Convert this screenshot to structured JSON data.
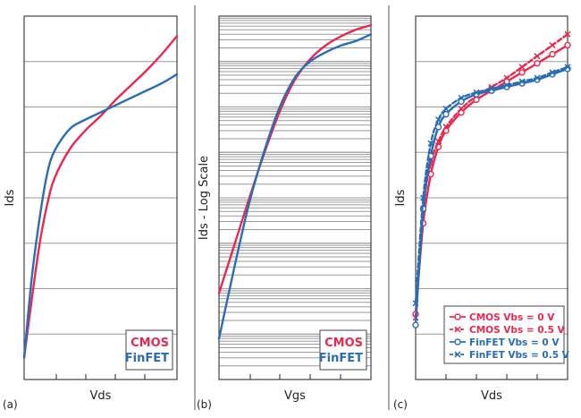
{
  "colors": {
    "cmos": "#e8294f",
    "finfet": "#2a6db5"
  },
  "chart_data": [
    {
      "panel_label": "(a)",
      "type": "line",
      "xlabel": "Vds",
      "ylabel": "Ids",
      "xlim": [
        0,
        10
      ],
      "ylim": [
        0,
        10
      ],
      "grid": true,
      "legend_position": "bottom-right",
      "series": [
        {
          "name": "CMOS",
          "color_key": "cmos",
          "x": [
            0,
            0.5,
            1,
            1.5,
            2,
            3,
            4,
            5,
            6,
            7,
            8,
            9,
            10
          ],
          "y": [
            0.6,
            2.2,
            3.7,
            4.8,
            5.55,
            6.35,
            6.85,
            7.25,
            7.7,
            8.1,
            8.5,
            8.95,
            9.45
          ]
        },
        {
          "name": "FinFET",
          "color_key": "finfet",
          "x": [
            0,
            0.5,
            1,
            1.5,
            2,
            3,
            4,
            5,
            6,
            7,
            8,
            9,
            10
          ],
          "y": [
            0.6,
            2.8,
            4.4,
            5.65,
            6.3,
            6.9,
            7.15,
            7.35,
            7.55,
            7.75,
            7.95,
            8.15,
            8.4
          ]
        }
      ]
    },
    {
      "panel_label": "(b)",
      "type": "line",
      "xlabel": "Vgs",
      "ylabel": "Ids - Log Scale",
      "xlim": [
        0,
        10
      ],
      "ylim": [
        0,
        8
      ],
      "grid": true,
      "log_scale_y": true,
      "legend_position": "bottom-right",
      "series": [
        {
          "name": "CMOS",
          "color_key": "cmos",
          "x": [
            0,
            1,
            2,
            3,
            4,
            5,
            6,
            7,
            8,
            9,
            10
          ],
          "y": [
            1.9,
            2.95,
            4.0,
            5.0,
            5.9,
            6.6,
            7.05,
            7.35,
            7.55,
            7.7,
            7.8
          ]
        },
        {
          "name": "FinFET",
          "color_key": "finfet",
          "x": [
            0,
            1,
            2,
            3,
            4,
            5,
            6,
            7,
            8,
            9,
            10
          ],
          "y": [
            0.9,
            2.45,
            3.9,
            5.05,
            6.0,
            6.65,
            7.0,
            7.2,
            7.35,
            7.45,
            7.6
          ]
        }
      ]
    },
    {
      "panel_label": "(c)",
      "type": "line",
      "xlabel": "Vds",
      "ylabel": "Ids",
      "xlim": [
        0,
        10
      ],
      "ylim": [
        0,
        10
      ],
      "grid": true,
      "legend_position": "bottom-right",
      "series": [
        {
          "name": "CMOS Vbs = 0 V",
          "color_key": "cmos",
          "marker": "circle",
          "dash": false,
          "x": [
            0,
            0.5,
            1,
            1.5,
            2,
            3,
            4,
            5,
            6,
            7,
            8,
            9,
            10
          ],
          "y": [
            1.8,
            4.3,
            5.65,
            6.4,
            6.85,
            7.35,
            7.7,
            7.95,
            8.2,
            8.45,
            8.7,
            8.95,
            9.2
          ]
        },
        {
          "name": "CMOS Vbs = 0.5 V",
          "color_key": "cmos",
          "marker": "x",
          "dash": true,
          "x": [
            0,
            0.5,
            1,
            1.5,
            2,
            3,
            4,
            5,
            6,
            7,
            8,
            9,
            10
          ],
          "y": [
            1.7,
            4.7,
            5.95,
            6.55,
            6.95,
            7.45,
            7.8,
            8.05,
            8.3,
            8.6,
            8.9,
            9.2,
            9.5
          ]
        },
        {
          "name": "FinFET Vbs = 0 V",
          "color_key": "finfet",
          "marker": "circle",
          "dash": false,
          "x": [
            0,
            0.5,
            1,
            1.5,
            2,
            3,
            4,
            5,
            6,
            7,
            8,
            9,
            10
          ],
          "y": [
            1.5,
            4.7,
            6.15,
            6.95,
            7.3,
            7.65,
            7.85,
            7.95,
            8.05,
            8.15,
            8.25,
            8.4,
            8.55
          ]
        },
        {
          "name": "FinFET Vbs = 0.5 V",
          "color_key": "finfet",
          "marker": "x",
          "dash": true,
          "x": [
            0,
            0.5,
            1,
            1.5,
            2,
            3,
            4,
            5,
            6,
            7,
            8,
            9,
            10
          ],
          "y": [
            2.1,
            5.0,
            6.5,
            7.15,
            7.45,
            7.75,
            7.9,
            8.0,
            8.1,
            8.2,
            8.3,
            8.45,
            8.6
          ]
        }
      ]
    }
  ]
}
